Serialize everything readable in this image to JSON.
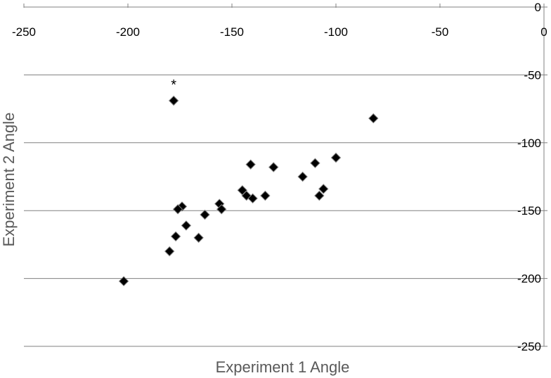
{
  "chart_data": {
    "type": "scatter",
    "xlabel": "Experiment 1 Angle",
    "ylabel": "Experiment 2 Angle",
    "xlim": [
      -250,
      0
    ],
    "ylim": [
      -250,
      0
    ],
    "x_ticks": [
      -250,
      -200,
      -150,
      -100,
      -50,
      0
    ],
    "y_ticks": [
      0,
      -50,
      -100,
      -150,
      -200,
      -250
    ],
    "grid": "horizontal",
    "x_axis_position": "top",
    "y_axis_position": "right",
    "marker": "diamond",
    "marker_color": "#000000",
    "points": [
      {
        "x": -178,
        "y": -69
      },
      {
        "x": -82,
        "y": -82
      },
      {
        "x": -100,
        "y": -111
      },
      {
        "x": -110,
        "y": -115
      },
      {
        "x": -141,
        "y": -116
      },
      {
        "x": -130,
        "y": -118
      },
      {
        "x": -116,
        "y": -125
      },
      {
        "x": -106,
        "y": -134
      },
      {
        "x": -145,
        "y": -135
      },
      {
        "x": -108,
        "y": -139
      },
      {
        "x": -143,
        "y": -139
      },
      {
        "x": -134,
        "y": -139
      },
      {
        "x": -140,
        "y": -141
      },
      {
        "x": -156,
        "y": -145
      },
      {
        "x": -174,
        "y": -147
      },
      {
        "x": -176,
        "y": -149
      },
      {
        "x": -155,
        "y": -149
      },
      {
        "x": -163,
        "y": -153
      },
      {
        "x": -172,
        "y": -161
      },
      {
        "x": -177,
        "y": -169
      },
      {
        "x": -166,
        "y": -170
      },
      {
        "x": -180,
        "y": -180
      },
      {
        "x": -202,
        "y": -202
      }
    ],
    "annotations": [
      {
        "text": "*",
        "x": -178,
        "y": -57
      }
    ]
  }
}
